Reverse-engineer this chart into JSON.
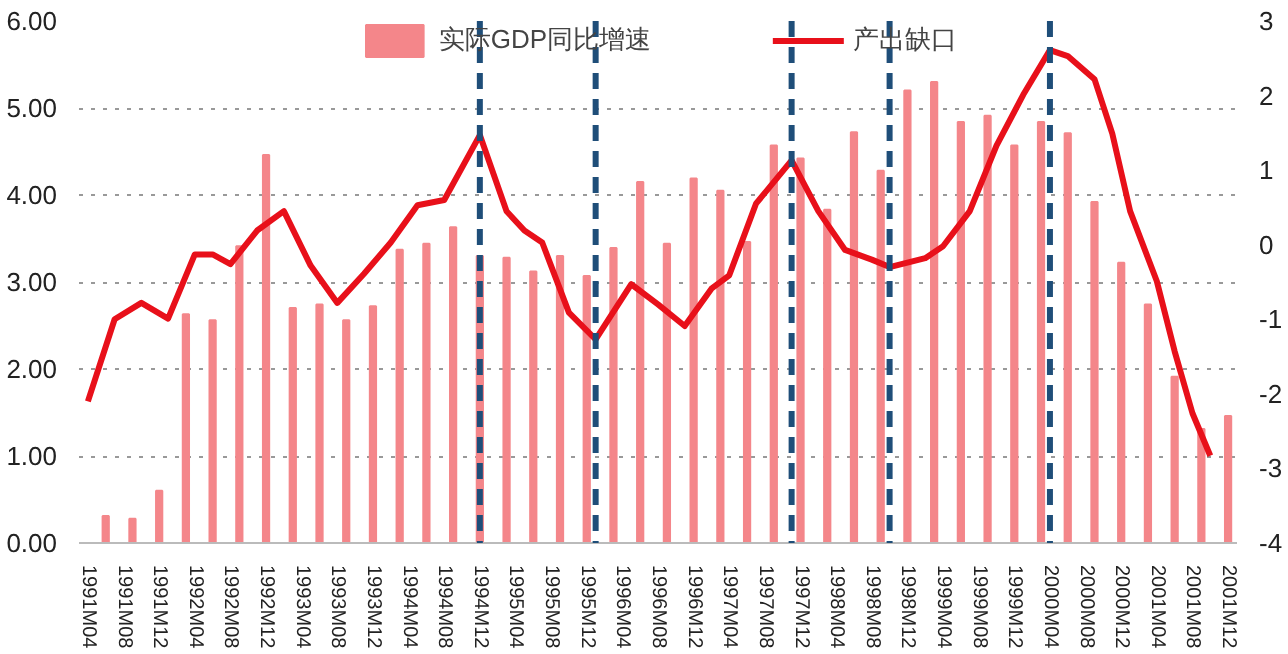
{
  "chart_data": {
    "type": "bar",
    "legend": "top",
    "grid": "y",
    "ylim": [
      0,
      6
    ],
    "yticks": [
      {
        "value": 0,
        "label": "0.00"
      },
      {
        "value": 1,
        "label": "1.00"
      },
      {
        "value": 2,
        "label": "2.00"
      },
      {
        "value": 3,
        "label": "3.00"
      },
      {
        "value": 4,
        "label": "4.00"
      },
      {
        "value": 5,
        "label": "5.00"
      },
      {
        "value": 6,
        "label": "6.00"
      }
    ],
    "y2lim": [
      -4,
      3
    ],
    "y2ticks": [
      -4,
      -3,
      -2,
      -1,
      0,
      1,
      2,
      3
    ],
    "xlim": [
      "1991-03",
      "2002-01"
    ],
    "xticks": [
      {
        "value": "1991-04",
        "label": "1991M04"
      },
      {
        "value": "1991-08",
        "label": "1991M08"
      },
      {
        "value": "1991-12",
        "label": "1991M12"
      },
      {
        "value": "1992-04",
        "label": "1992M04"
      },
      {
        "value": "1992-08",
        "label": "1992M08"
      },
      {
        "value": "1992-12",
        "label": "1992M12"
      },
      {
        "value": "1993-04",
        "label": "1993M04"
      },
      {
        "value": "1993-08",
        "label": "1993M08"
      },
      {
        "value": "1993-12",
        "label": "1993M12"
      },
      {
        "value": "1994-04",
        "label": "1994M04"
      },
      {
        "value": "1994-08",
        "label": "1994M08"
      },
      {
        "value": "1994-12",
        "label": "1994M12"
      },
      {
        "value": "1995-04",
        "label": "1995M04"
      },
      {
        "value": "1995-08",
        "label": "1995M08"
      },
      {
        "value": "1995-12",
        "label": "1995M12"
      },
      {
        "value": "1996-04",
        "label": "1996M04"
      },
      {
        "value": "1996-08",
        "label": "1996M08"
      },
      {
        "value": "1996-12",
        "label": "1996M12"
      },
      {
        "value": "1997-04",
        "label": "1997M04"
      },
      {
        "value": "1997-08",
        "label": "1997M08"
      },
      {
        "value": "1997-12",
        "label": "1997M12"
      },
      {
        "value": "1998-04",
        "label": "1998M04"
      },
      {
        "value": "1998-08",
        "label": "1998M08"
      },
      {
        "value": "1998-12",
        "label": "1998M12"
      },
      {
        "value": "1999-04",
        "label": "1999M04"
      },
      {
        "value": "1999-08",
        "label": "1999M08"
      },
      {
        "value": "1999-12",
        "label": "1999M12"
      },
      {
        "value": "2000-04",
        "label": "2000M04"
      },
      {
        "value": "2000-08",
        "label": "2000M08"
      },
      {
        "value": "2000-12",
        "label": "2000M12"
      },
      {
        "value": "2001-04",
        "label": "2001M04"
      },
      {
        "value": "2001-08",
        "label": "2001M08"
      },
      {
        "value": "2001-12",
        "label": "2001M12"
      }
    ],
    "series": [
      {
        "name": "实际GDP同比增速",
        "color": "#f4868a",
        "x": [
          "1991-06",
          "1991-09",
          "1991-12",
          "1992-03",
          "1992-06",
          "1992-09",
          "1992-12",
          "1993-03",
          "1993-06",
          "1993-09",
          "1993-12",
          "1994-03",
          "1994-06",
          "1994-09",
          "1994-12",
          "1995-03",
          "1995-06",
          "1995-09",
          "1995-12",
          "1996-03",
          "1996-06",
          "1996-09",
          "1996-12",
          "1997-03",
          "1997-06",
          "1997-09",
          "1997-12",
          "1998-03",
          "1998-06",
          "1998-09",
          "1998-12",
          "1999-03",
          "1999-06",
          "1999-09",
          "1999-12",
          "2000-03",
          "2000-06",
          "2000-09",
          "2000-12",
          "2001-03",
          "2001-06",
          "2001-09",
          "2001-12"
        ],
        "values": [
          0.31,
          0.28,
          0.6,
          2.63,
          2.56,
          3.41,
          4.46,
          2.7,
          2.74,
          2.56,
          2.72,
          3.37,
          3.44,
          3.63,
          3.3,
          3.28,
          3.12,
          3.3,
          3.07,
          3.39,
          4.15,
          3.44,
          4.19,
          4.05,
          3.46,
          4.57,
          4.42,
          3.83,
          4.72,
          4.28,
          5.2,
          5.3,
          4.84,
          4.91,
          4.57,
          4.84,
          4.71,
          3.92,
          3.22,
          2.74,
          1.91,
          1.31,
          1.46
        ]
      },
      {
        "name": "产出缺口",
        "type": "line",
        "axis": "y2",
        "color": "#e8101a",
        "x": [
          "1991-04",
          "1991-07",
          "1991-10",
          "1992-01",
          "1992-04",
          "1992-06",
          "1992-08",
          "1992-11",
          "1993-02",
          "1993-05",
          "1993-08",
          "1993-11",
          "1994-02",
          "1994-05",
          "1994-08",
          "1994-12",
          "1995-03",
          "1995-05",
          "1995-07",
          "1995-10",
          "1996-01",
          "1996-05",
          "1996-08",
          "1996-11",
          "1997-02",
          "1997-04",
          "1997-07",
          "1997-11",
          "1998-02",
          "1998-05",
          "1998-08",
          "1998-10",
          "1999-02",
          "1999-04",
          "1999-07",
          "1999-10",
          "2000-01",
          "2000-04",
          "2000-06",
          "2000-09",
          "2000-11",
          "2001-01",
          "2001-04",
          "2001-06",
          "2001-08",
          "2001-10"
        ],
        "values": [
          -2.1,
          -1.0,
          -0.78,
          -0.99,
          -0.13,
          -0.13,
          -0.26,
          0.19,
          0.45,
          -0.28,
          -0.78,
          -0.39,
          0.03,
          0.53,
          0.6,
          1.47,
          0.45,
          0.19,
          0.03,
          -0.91,
          -1.27,
          -0.53,
          -0.8,
          -1.09,
          -0.59,
          -0.41,
          0.55,
          1.13,
          0.45,
          -0.07,
          -0.2,
          -0.3,
          -0.18,
          -0.02,
          0.45,
          1.33,
          2.01,
          2.61,
          2.53,
          2.22,
          1.49,
          0.45,
          -0.49,
          -1.43,
          -2.26,
          -2.83
        ]
      }
    ],
    "ref_lines": [
      {
        "axis": "x",
        "value": "1994-12",
        "color": "#1f4e79",
        "line_style": "dashed"
      },
      {
        "axis": "x",
        "value": "1996-01",
        "color": "#1f4e79",
        "line_style": "dashed"
      },
      {
        "axis": "x",
        "value": "1997-11",
        "color": "#1f4e79",
        "line_style": "dashed"
      },
      {
        "axis": "x",
        "value": "1998-10",
        "color": "#1f4e79",
        "line_style": "dashed"
      },
      {
        "axis": "x",
        "value": "2000-04",
        "color": "#1f4e79",
        "line_style": "dashed"
      }
    ]
  }
}
